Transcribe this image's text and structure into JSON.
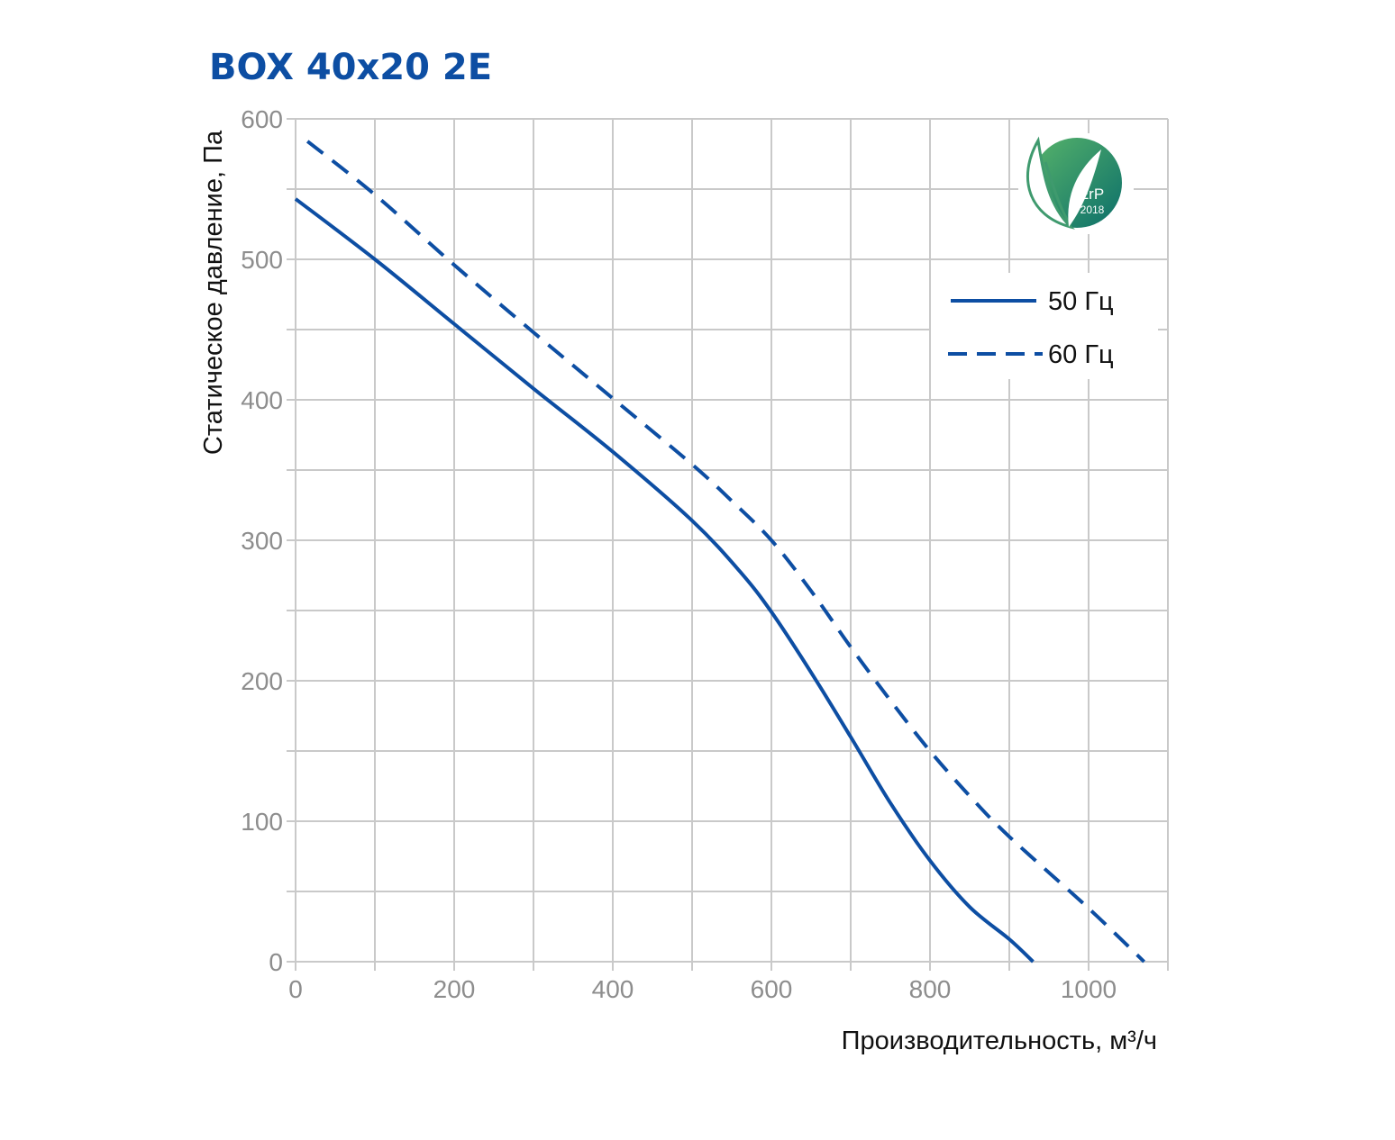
{
  "colors": {
    "line": "#0d4ea3",
    "title": "#0d4ea3",
    "grid": "#c9c9c9",
    "tick": "#8d8d8d",
    "badge_dark": "#0c6f6a",
    "badge_light": "#57b36a"
  },
  "badge": {
    "icon": "erp-leaf-icon",
    "line1": "ErP",
    "line2": "2018"
  },
  "chart_data": {
    "type": "line",
    "title": "BOX 40x20 2E",
    "xlabel": "Производительность, м³/ч",
    "ylabel": "Статическое давление, Па",
    "xlim": [
      0,
      1100
    ],
    "ylim": [
      0,
      600
    ],
    "xticks": [
      0,
      200,
      400,
      600,
      800,
      1000
    ],
    "yticks": [
      0,
      100,
      200,
      300,
      400,
      500,
      600
    ],
    "x_minor_step": 100,
    "y_minor_step": 50,
    "grid": true,
    "legend_position": "top-right",
    "series": [
      {
        "name": "50 Гц",
        "style": "solid",
        "x": [
          0,
          100,
          200,
          300,
          400,
          500,
          560,
          600,
          650,
          700,
          750,
          800,
          850,
          900,
          930
        ],
        "y": [
          543,
          500,
          454,
          408,
          363,
          314,
          278,
          249,
          206,
          160,
          113,
          72,
          39,
          16,
          0
        ]
      },
      {
        "name": "60 Гц",
        "style": "dashed",
        "x": [
          15,
          100,
          200,
          300,
          400,
          500,
          550,
          600,
          650,
          700,
          750,
          800,
          850,
          900,
          1000,
          1070
        ],
        "y": [
          584,
          546,
          496,
          448,
          401,
          354,
          328,
          300,
          264,
          224,
          186,
          150,
          118,
          89,
          38,
          0
        ]
      }
    ]
  }
}
